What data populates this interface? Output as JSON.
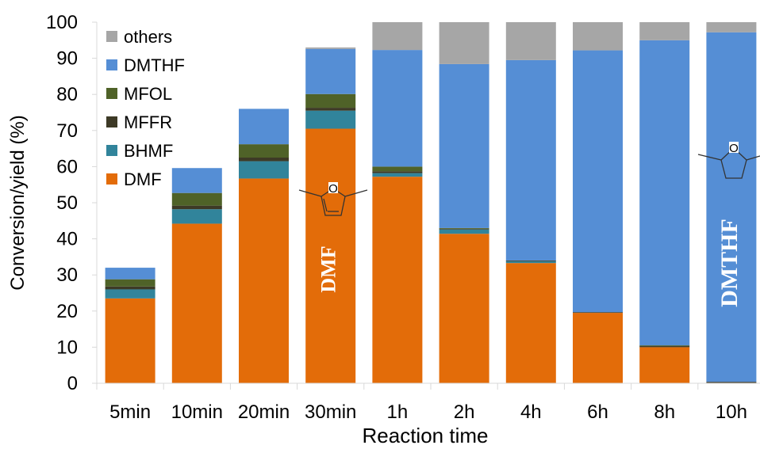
{
  "chart_data": {
    "type": "bar",
    "stacked": true,
    "xlabel": "Reaction time",
    "ylabel": "Conversion/yield  (%)",
    "ylim": [
      0,
      100
    ],
    "yticks": [
      0,
      10,
      20,
      30,
      40,
      50,
      60,
      70,
      80,
      90,
      100
    ],
    "grid": false,
    "legend_position": "top-left",
    "categories": [
      "5min",
      "10min",
      "20min",
      "30min",
      "1h",
      "2h",
      "4h",
      "6h",
      "8h",
      "10h"
    ],
    "series": [
      {
        "name": "DMF",
        "color": "#E36C09",
        "values": [
          23.5,
          44.2,
          56.7,
          70.5,
          57.2,
          41.4,
          33.3,
          19.5,
          10.0,
          0.0
        ]
      },
      {
        "name": "BHMF",
        "color": "#31849B",
        "values": [
          2.5,
          4.0,
          4.8,
          5.0,
          1.0,
          1.2,
          0.5,
          0.0,
          0.0,
          0.0
        ]
      },
      {
        "name": "MFFR",
        "color": "#3D3A26",
        "values": [
          0.8,
          1.0,
          1.0,
          0.8,
          0.5,
          0.2,
          0.2,
          0.2,
          0.3,
          0.4
        ]
      },
      {
        "name": "MFOL",
        "color": "#4F6228",
        "values": [
          2.0,
          3.5,
          3.7,
          3.8,
          1.3,
          0.2,
          0.0,
          0.0,
          0.2,
          0.0
        ]
      },
      {
        "name": "DMTHF",
        "color": "#558ED5",
        "values": [
          3.2,
          6.9,
          9.8,
          12.5,
          32.3,
          45.4,
          55.5,
          72.5,
          84.5,
          96.8
        ]
      },
      {
        "name": "others",
        "color": "#A6A6A6",
        "values": [
          0.0,
          0.0,
          0.0,
          0.4,
          7.7,
          11.6,
          10.5,
          7.8,
          5.0,
          2.8
        ]
      }
    ],
    "annotations": [
      {
        "text": "DMF",
        "category": "30min",
        "color": "#ffffff"
      },
      {
        "text": "DMTHF",
        "category": "10h",
        "color": "#ffffff"
      }
    ],
    "structure_labels": [
      "O",
      "O"
    ]
  }
}
